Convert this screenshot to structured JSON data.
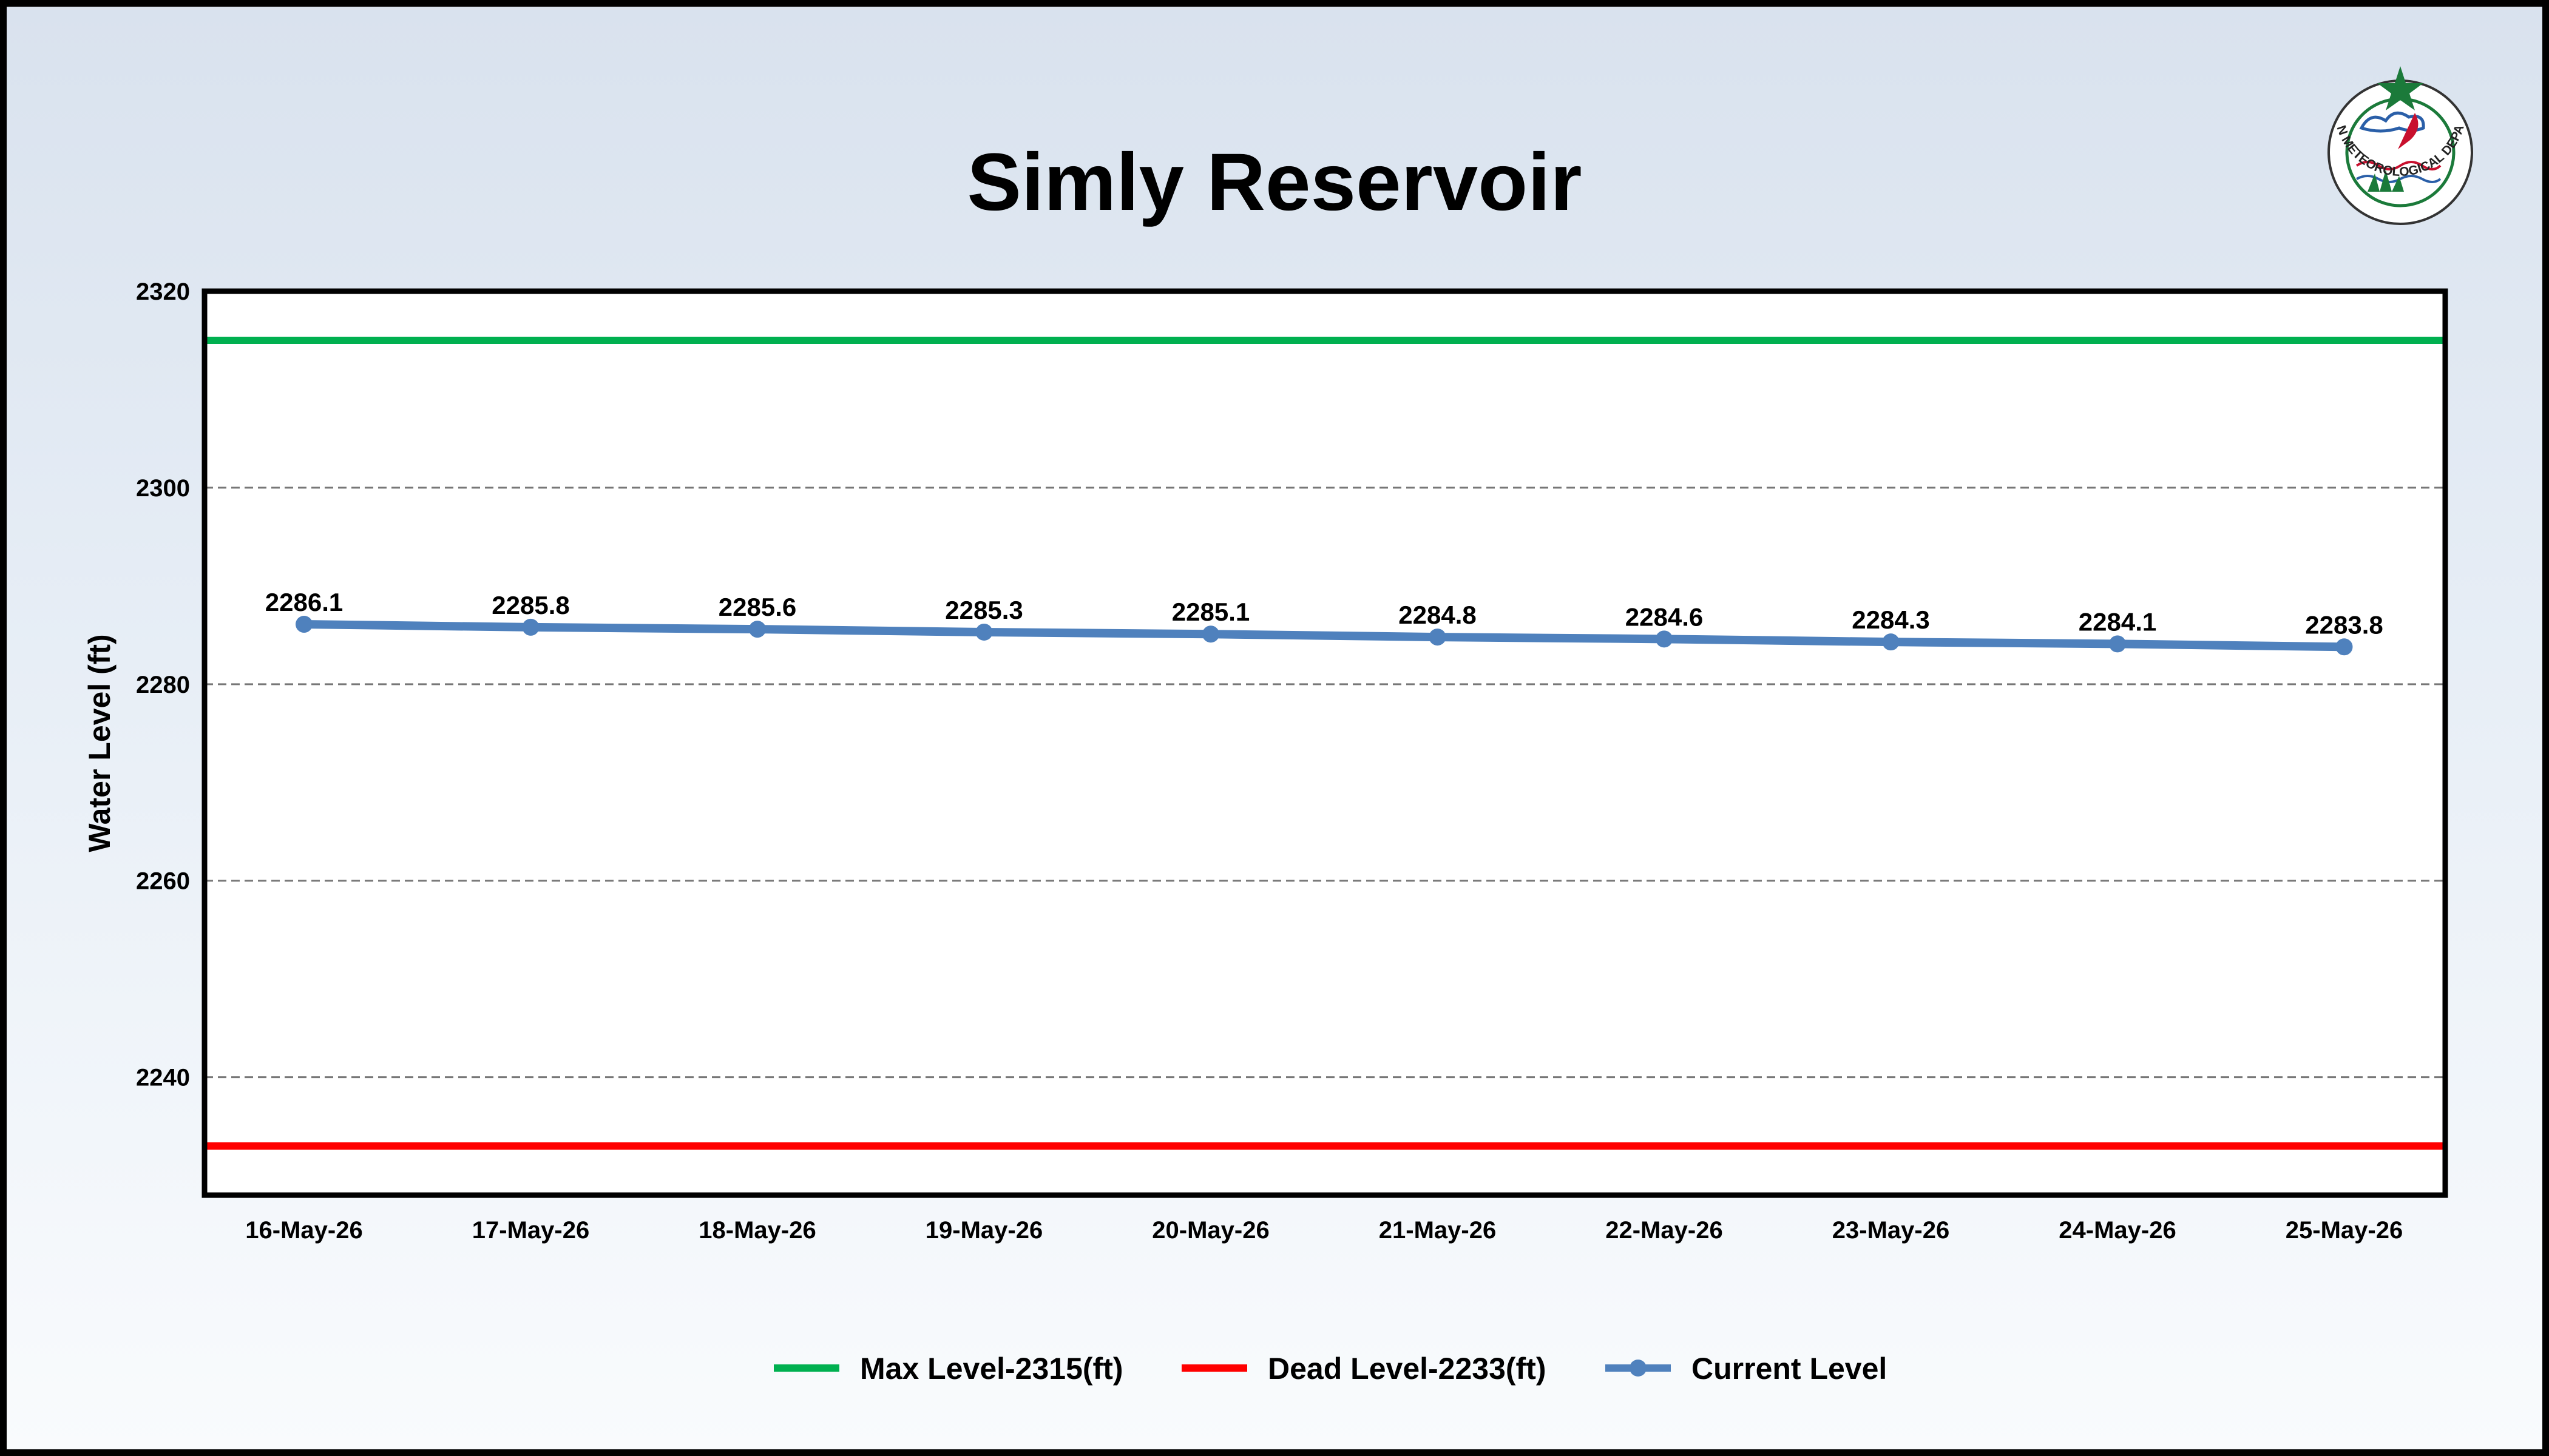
{
  "title": "Simly Reservoir",
  "logo": {
    "name": "pmd-emblem",
    "text": "PAKISTAN METEOROLOGICAL DEPARTMENT",
    "colors": {
      "star": "#1b7a3a",
      "ring": "#1b7a3a",
      "accent": "#c8102e",
      "cloud": "#2a5fa8"
    }
  },
  "chart_data": {
    "type": "line",
    "title": "Simly Reservoir",
    "xlabel": "",
    "ylabel": "Water Level (ft)",
    "categories": [
      "16-May-26",
      "17-May-26",
      "18-May-26",
      "19-May-26",
      "20-May-26",
      "21-May-26",
      "22-May-26",
      "23-May-26",
      "24-May-26",
      "25-May-26"
    ],
    "series": [
      {
        "name": "Current Level",
        "values": [
          2286.1,
          2285.8,
          2285.6,
          2285.3,
          2285.1,
          2284.8,
          2284.6,
          2284.3,
          2284.1,
          2283.8
        ],
        "color": "#4f81bd"
      }
    ],
    "data_labels": [
      "2286.1",
      "2285.8",
      "2285.6",
      "2285.3",
      "2285.1",
      "2284.8",
      "2284.6",
      "2284.3",
      "2284.1",
      "2283.8"
    ],
    "reference_lines": [
      {
        "name": "Max Level-2315(ft)",
        "value": 2315,
        "color": "#00b050"
      },
      {
        "name": "Dead Level-2233(ft)",
        "value": 2233,
        "color": "#ff0000"
      }
    ],
    "ylim": [
      2228,
      2320
    ],
    "yticks": [
      2240,
      2260,
      2280,
      2300,
      2320
    ],
    "grid": "horizontal dashed",
    "legend_position": "bottom-center"
  }
}
